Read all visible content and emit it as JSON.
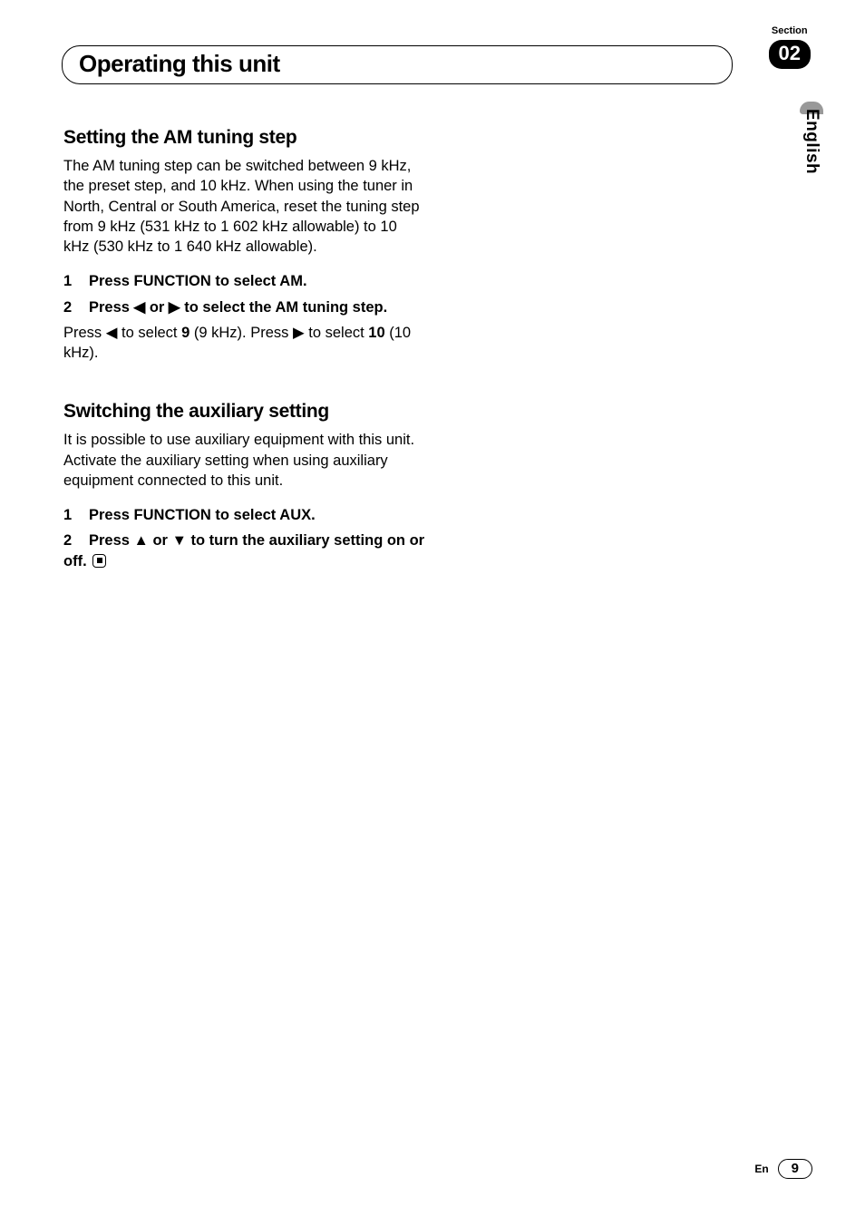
{
  "header": {
    "chapter_title": "Operating this unit",
    "section_label": "Section",
    "section_number": "02"
  },
  "lang_tab": "English",
  "sections": {
    "am": {
      "heading": "Setting the AM tuning step",
      "intro": "The AM tuning step can be switched between 9 kHz, the preset step, and 10 kHz. When using the tuner in North, Central or South America, reset the tuning step from 9 kHz (531 kHz to 1 602 kHz allowable) to 10 kHz (530 kHz to 1 640 kHz allowable).",
      "step1_n": "1",
      "step1_text": "Press FUNCTION to select AM.",
      "step2_n": "2",
      "step2_pre": "Press ",
      "step2_left": "◀",
      "step2_mid": " or ",
      "step2_right": "▶",
      "step2_post": " to select the AM tuning step.",
      "step2_detail_a": "Press ",
      "step2_detail_left": "◀",
      "step2_detail_b": " to select ",
      "step2_detail_9": "9",
      "step2_detail_c": " (9 kHz). Press ",
      "step2_detail_right": "▶",
      "step2_detail_d": " to select ",
      "step2_detail_10": "10",
      "step2_detail_e": " (10 kHz)."
    },
    "aux": {
      "heading": "Switching the auxiliary setting",
      "intro": "It is possible to use auxiliary equipment with this unit. Activate the auxiliary setting when using auxiliary equipment connected to this unit.",
      "step1_n": "1",
      "step1_text": "Press FUNCTION to select AUX.",
      "step2_n": "2",
      "step2_pre": "Press ",
      "step2_up": "▲",
      "step2_mid": " or ",
      "step2_down": "▼",
      "step2_post": " to turn the auxiliary setting on or off."
    }
  },
  "footer": {
    "lang_code": "En",
    "page_number": "9"
  },
  "colors": {
    "text": "#000000",
    "bg": "#ffffff",
    "tab_curve": "#999999"
  }
}
